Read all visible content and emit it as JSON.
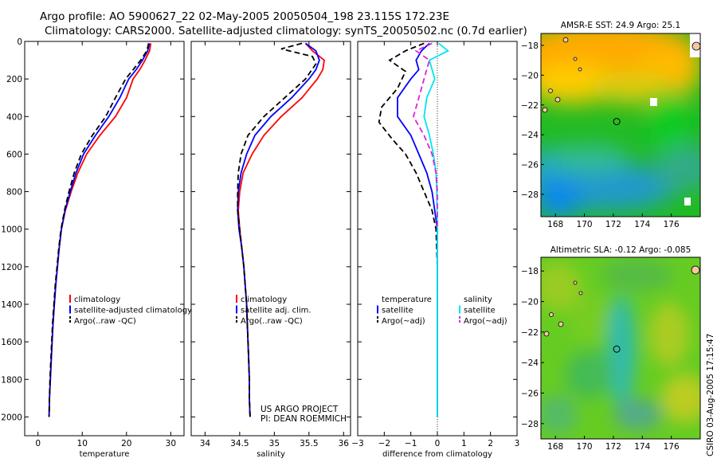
{
  "header": {
    "title_line1": "Argo profile: AO 5900627_22 02-May-2005 20050504_198 23.115S 172.23E",
    "title_line2": "Climatology: CARS2000. Satellite-adjusted climatology: synTS_20050502.nc (0.7d earlier)"
  },
  "colors": {
    "climatology": "#ff0000",
    "satellite": "#0000ff",
    "argo": "#000000",
    "salinity_satellite": "#00e5ee",
    "salinity_argo": "#dd22dd"
  },
  "credit": {
    "line1": "US ARGO PROJECT",
    "line2": "PI: DEAN ROEMMICH"
  },
  "side_stamp": "CSIRO 03-Aug-2005 17:15:47",
  "chart_data": [
    {
      "type": "line",
      "id": "temperature",
      "xlabel": "temperature",
      "ylabel": "",
      "xlim": [
        -3,
        33
      ],
      "ylim": [
        0,
        2100
      ],
      "y_inverted": true,
      "xticks": [
        0,
        10,
        20,
        30
      ],
      "yticks": [
        0,
        200,
        400,
        600,
        800,
        1000,
        1200,
        1400,
        1600,
        1800,
        2000
      ],
      "legend": [
        "climatology",
        "satellite-adjusted climatology",
        "Argo(..raw -QC)"
      ],
      "series": [
        {
          "name": "climatology",
          "color": "#ff0000",
          "style": "solid",
          "points": [
            [
              25.5,
              10
            ],
            [
              25.2,
              50
            ],
            [
              24.2,
              100
            ],
            [
              23.0,
              150
            ],
            [
              21.5,
              200
            ],
            [
              20.0,
              300
            ],
            [
              17.5,
              400
            ],
            [
              14.0,
              500
            ],
            [
              11.0,
              600
            ],
            [
              9.0,
              700
            ],
            [
              7.5,
              800
            ],
            [
              6.2,
              900
            ],
            [
              5.3,
              1000
            ],
            [
              4.8,
              1100
            ],
            [
              4.4,
              1200
            ],
            [
              4.0,
              1300
            ],
            [
              3.7,
              1400
            ],
            [
              3.4,
              1500
            ],
            [
              3.2,
              1600
            ],
            [
              3.0,
              1700
            ],
            [
              2.8,
              1800
            ],
            [
              2.6,
              1900
            ],
            [
              2.5,
              2000
            ]
          ]
        },
        {
          "name": "satellite-adjusted climatology",
          "color": "#0000ff",
          "style": "solid",
          "points": [
            [
              25.2,
              10
            ],
            [
              24.8,
              50
            ],
            [
              23.6,
              100
            ],
            [
              22.2,
              150
            ],
            [
              20.5,
              200
            ],
            [
              18.5,
              300
            ],
            [
              16.0,
              400
            ],
            [
              13.0,
              500
            ],
            [
              10.3,
              600
            ],
            [
              8.6,
              700
            ],
            [
              7.3,
              800
            ],
            [
              6.1,
              900
            ],
            [
              5.3,
              1000
            ],
            [
              4.8,
              1100
            ],
            [
              4.4,
              1200
            ],
            [
              4.0,
              1300
            ],
            [
              3.7,
              1400
            ],
            [
              3.4,
              1500
            ],
            [
              3.2,
              1600
            ],
            [
              3.0,
              1700
            ],
            [
              2.8,
              1800
            ],
            [
              2.6,
              1900
            ],
            [
              2.5,
              2000
            ]
          ]
        },
        {
          "name": "Argo(..raw -QC)",
          "color": "#000000",
          "style": "dash",
          "points": [
            [
              25.0,
              10
            ],
            [
              24.6,
              50
            ],
            [
              23.2,
              100
            ],
            [
              21.5,
              150
            ],
            [
              19.8,
              200
            ],
            [
              17.5,
              300
            ],
            [
              15.3,
              400
            ],
            [
              12.3,
              500
            ],
            [
              9.8,
              600
            ],
            [
              8.2,
              700
            ],
            [
              7.0,
              800
            ],
            [
              6.0,
              900
            ],
            [
              5.2,
              1000
            ],
            [
              4.7,
              1100
            ],
            [
              4.3,
              1200
            ],
            [
              3.9,
              1300
            ],
            [
              3.6,
              1400
            ],
            [
              3.3,
              1500
            ],
            [
              3.1,
              1600
            ],
            [
              2.9,
              1700
            ],
            [
              2.7,
              1800
            ],
            [
              2.6,
              1900
            ],
            [
              2.5,
              2000
            ]
          ]
        }
      ]
    },
    {
      "type": "line",
      "id": "salinity",
      "xlabel": "salinity",
      "ylabel": "",
      "xlim": [
        33.8,
        36.1
      ],
      "ylim": [
        0,
        2100
      ],
      "y_inverted": true,
      "xticks": [
        34,
        34.5,
        35,
        35.5,
        36
      ],
      "legend": [
        "climatology",
        "satellite adj. clim.",
        "Argo(..raw -QC)"
      ],
      "series": [
        {
          "name": "climatology",
          "color": "#ff0000",
          "style": "solid",
          "points": [
            [
              35.45,
              10
            ],
            [
              35.55,
              50
            ],
            [
              35.72,
              100
            ],
            [
              35.7,
              150
            ],
            [
              35.62,
              200
            ],
            [
              35.4,
              300
            ],
            [
              35.1,
              400
            ],
            [
              34.85,
              500
            ],
            [
              34.68,
              600
            ],
            [
              34.55,
              700
            ],
            [
              34.5,
              800
            ],
            [
              34.48,
              900
            ],
            [
              34.5,
              1000
            ],
            [
              34.53,
              1100
            ],
            [
              34.56,
              1200
            ],
            [
              34.58,
              1300
            ],
            [
              34.6,
              1400
            ],
            [
              34.61,
              1500
            ],
            [
              34.62,
              1600
            ],
            [
              34.63,
              1700
            ],
            [
              34.64,
              1800
            ],
            [
              34.64,
              1900
            ],
            [
              34.65,
              2000
            ]
          ]
        },
        {
          "name": "satellite adj. clim.",
          "color": "#0000ff",
          "style": "solid",
          "points": [
            [
              35.45,
              10
            ],
            [
              35.6,
              50
            ],
            [
              35.65,
              100
            ],
            [
              35.6,
              150
            ],
            [
              35.5,
              200
            ],
            [
              35.25,
              300
            ],
            [
              34.95,
              400
            ],
            [
              34.72,
              500
            ],
            [
              34.6,
              600
            ],
            [
              34.52,
              700
            ],
            [
              34.48,
              800
            ],
            [
              34.47,
              900
            ],
            [
              34.49,
              1000
            ],
            [
              34.53,
              1100
            ],
            [
              34.56,
              1200
            ],
            [
              34.58,
              1300
            ],
            [
              34.6,
              1400
            ],
            [
              34.61,
              1500
            ],
            [
              34.62,
              1600
            ],
            [
              34.63,
              1700
            ],
            [
              34.64,
              1800
            ],
            [
              34.64,
              1900
            ],
            [
              34.65,
              2000
            ]
          ]
        },
        {
          "name": "Argo(..raw -QC)",
          "color": "#000000",
          "style": "dash",
          "points": [
            [
              35.4,
              10
            ],
            [
              35.1,
              40
            ],
            [
              35.55,
              80
            ],
            [
              35.6,
              120
            ],
            [
              35.45,
              200
            ],
            [
              35.15,
              300
            ],
            [
              34.85,
              400
            ],
            [
              34.62,
              500
            ],
            [
              34.52,
              600
            ],
            [
              34.48,
              700
            ],
            [
              34.47,
              800
            ],
            [
              34.47,
              900
            ],
            [
              34.5,
              1000
            ],
            [
              34.53,
              1100
            ],
            [
              34.56,
              1200
            ],
            [
              34.58,
              1300
            ],
            [
              34.6,
              1400
            ],
            [
              34.61,
              1500
            ],
            [
              34.62,
              1600
            ],
            [
              34.63,
              1700
            ],
            [
              34.64,
              1800
            ],
            [
              34.64,
              1900
            ],
            [
              34.65,
              2000
            ]
          ]
        }
      ]
    },
    {
      "type": "line",
      "id": "difference",
      "xlabel": "difference from climatology",
      "ylabel": "",
      "xlim": [
        -3,
        3
      ],
      "ylim": [
        0,
        2100
      ],
      "y_inverted": true,
      "xticks": [
        -3,
        -2,
        -1,
        0,
        1,
        2,
        3
      ],
      "legend_left_title": "temperature",
      "legend_left": [
        "satellite",
        "Argo(~adj)"
      ],
      "legend_right_title": "salinity",
      "legend_right": [
        "satellite",
        "Argo(~adj)"
      ],
      "series": [
        {
          "name": "temperature satellite",
          "color": "#0000ff",
          "style": "solid",
          "points": [
            [
              -0.3,
              10
            ],
            [
              -0.6,
              50
            ],
            [
              -0.8,
              100
            ],
            [
              -0.7,
              150
            ],
            [
              -1.0,
              200
            ],
            [
              -1.5,
              300
            ],
            [
              -1.5,
              400
            ],
            [
              -1.0,
              500
            ],
            [
              -0.7,
              600
            ],
            [
              -0.4,
              700
            ],
            [
              -0.2,
              800
            ],
            [
              -0.1,
              900
            ],
            [
              0,
              1000
            ],
            [
              0,
              1200
            ],
            [
              0,
              1500
            ],
            [
              0,
              2000
            ]
          ]
        },
        {
          "name": "temperature Argo(~adj)",
          "color": "#000000",
          "style": "dash",
          "points": [
            [
              -0.5,
              10
            ],
            [
              -1.2,
              50
            ],
            [
              -1.8,
              100
            ],
            [
              -1.2,
              160
            ],
            [
              -1.5,
              250
            ],
            [
              -2.1,
              350
            ],
            [
              -2.2,
              430
            ],
            [
              -1.7,
              520
            ],
            [
              -1.2,
              600
            ],
            [
              -0.8,
              700
            ],
            [
              -0.5,
              800
            ],
            [
              -0.2,
              900
            ],
            [
              -0.05,
              1000
            ],
            [
              0,
              1200
            ],
            [
              0,
              2000
            ]
          ]
        },
        {
          "name": "salinity satellite",
          "color": "#00e5ee",
          "style": "solid",
          "points": [
            [
              0.05,
              10
            ],
            [
              0.4,
              50
            ],
            [
              -0.3,
              100
            ],
            [
              -0.1,
              200
            ],
            [
              -0.4,
              300
            ],
            [
              -0.5,
              400
            ],
            [
              -0.3,
              500
            ],
            [
              -0.15,
              600
            ],
            [
              -0.05,
              700
            ],
            [
              -0.02,
              800
            ],
            [
              0,
              1000
            ],
            [
              0,
              1500
            ],
            [
              0,
              2000
            ]
          ]
        },
        {
          "name": "salinity Argo(~adj)",
          "color": "#dd22dd",
          "style": "dash",
          "points": [
            [
              -0.2,
              10
            ],
            [
              -0.8,
              50
            ],
            [
              -0.3,
              100
            ],
            [
              -0.5,
              200
            ],
            [
              -0.7,
              300
            ],
            [
              -0.9,
              400
            ],
            [
              -0.5,
              500
            ],
            [
              -0.2,
              600
            ],
            [
              -0.05,
              700
            ],
            [
              0,
              800
            ],
            [
              0,
              1000
            ]
          ]
        }
      ]
    },
    {
      "type": "heatmap",
      "id": "sst-map",
      "title": "AMSR-E SST: 24.9 Argo: 25.1",
      "xlim": [
        167,
        178
      ],
      "ylim": [
        -29.5,
        -17.2
      ],
      "xticks": [
        168,
        170,
        172,
        174,
        176
      ],
      "yticks": [
        -18,
        -20,
        -22,
        -24,
        -26,
        -28
      ],
      "marker": [
        172.23,
        -23.115
      ]
    },
    {
      "type": "heatmap",
      "id": "sla-map",
      "title": "Altimetric SLA: -0.12 Argo: -0.085",
      "xlim": [
        167,
        178
      ],
      "ylim": [
        -29,
        -17.1
      ],
      "xticks": [
        168,
        170,
        172,
        174,
        176
      ],
      "yticks": [
        -18,
        -20,
        -22,
        -24,
        -26,
        -28
      ],
      "marker": [
        172.23,
        -23.115
      ]
    }
  ]
}
